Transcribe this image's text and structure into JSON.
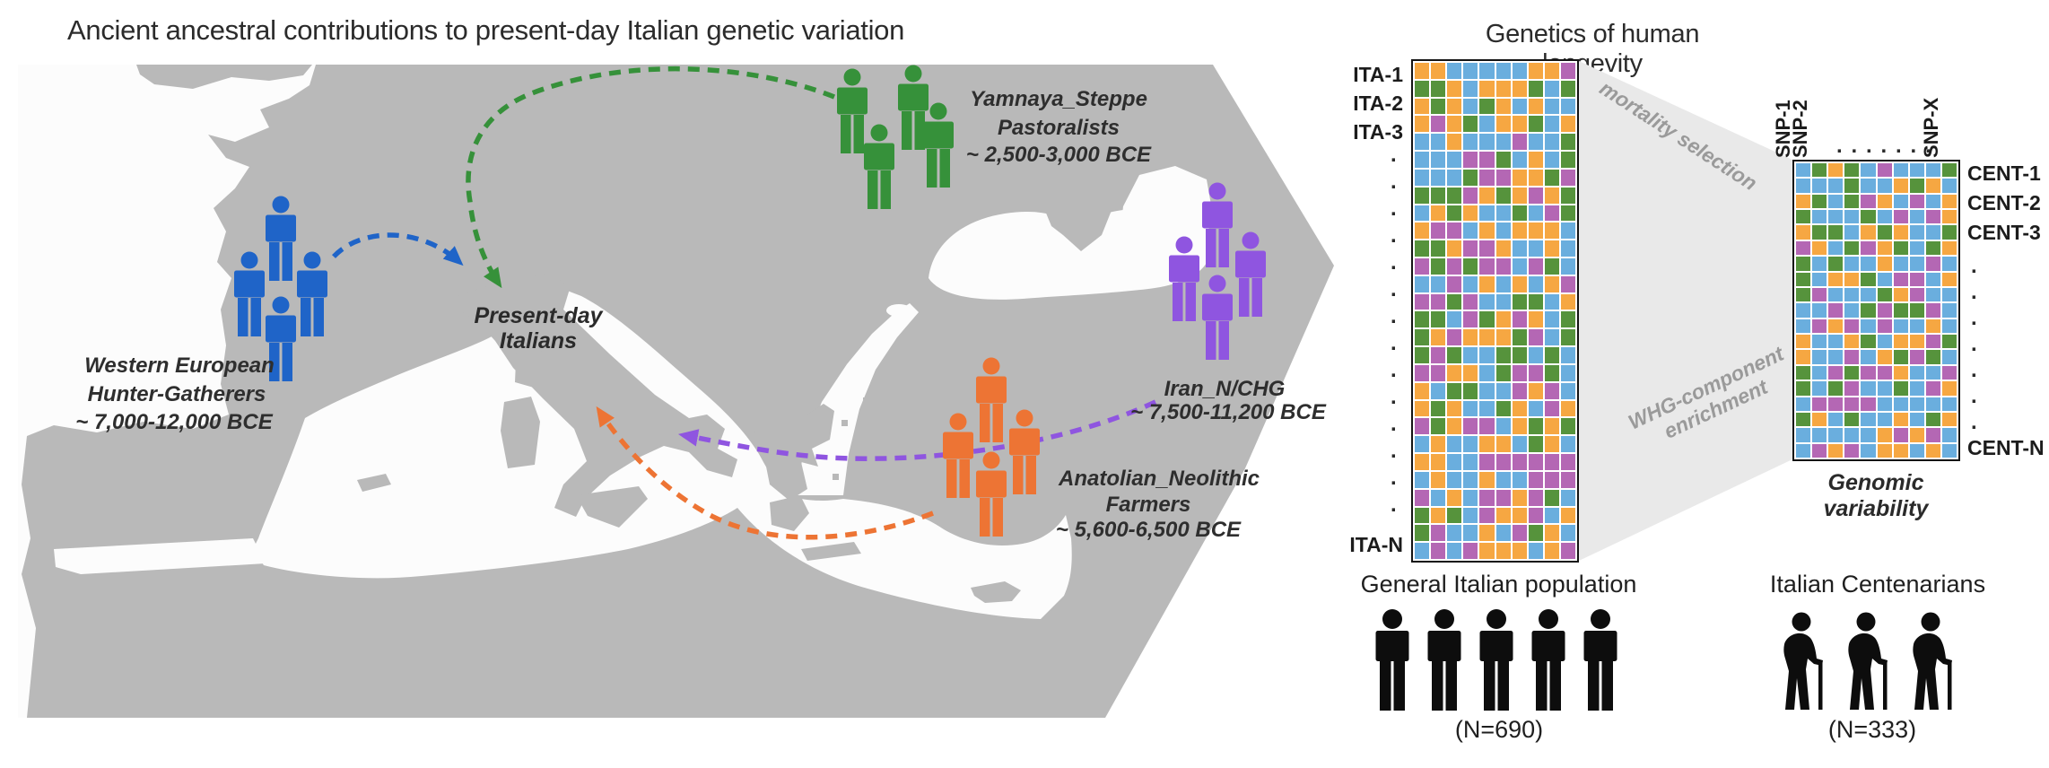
{
  "map_panel": {
    "title": "Ancient ancestral contributions to present-day Italian genetic variation",
    "destination": {
      "line1": "Present-day",
      "line2": "Italians"
    },
    "land_color": "#b9b9b9",
    "sea_color": "#fcfcfc",
    "populations": [
      {
        "id": "whg",
        "name_line1": "Western European",
        "name_line2": "Hunter-Gatherers",
        "date_line": "~ 7,000-12,000 BCE",
        "color": "#1f64c8"
      },
      {
        "id": "yamnaya",
        "name_line1": "Yamnaya_Steppe",
        "name_line2": "Pastoralists",
        "date_line": "~ 2,500-3,000 BCE",
        "color": "#36913a"
      },
      {
        "id": "iran",
        "name_line1": "Iran_N/CHG",
        "name_line2": "",
        "date_line": "~ 7,500-11,200 BCE",
        "color": "#8f55e0"
      },
      {
        "id": "anatolia",
        "name_line1": "Anatolian_Neolithic",
        "name_line2": "Farmers",
        "date_line": "~ 5,600-6,500 BCE",
        "color": "#ed7434"
      }
    ]
  },
  "longevity_panel": {
    "title": "Genetics of human longevity",
    "matrix_palette": [
      "#6aaede",
      "#f6a742",
      "#56933c",
      "#b467b4"
    ],
    "ita_matrix": {
      "rows": 28,
      "cols": 10,
      "weights": [
        0.27,
        0.31,
        0.21,
        0.21
      ],
      "seed": 13,
      "row_labels": [
        "ITA-1",
        "ITA-2",
        "ITA-3"
      ],
      "row_label_last": "ITA-N",
      "dot_count": 14
    },
    "cent_matrix": {
      "rows": 19,
      "cols": 10,
      "weights": [
        0.45,
        0.19,
        0.17,
        0.19
      ],
      "seed": 99,
      "row_labels": [
        "CENT-1",
        "CENT-2",
        "CENT-3"
      ],
      "row_label_last": "CENT-N",
      "dot_count": 7,
      "col_labels": [
        "SNP-1",
        "SNP-2"
      ],
      "col_label_last": "SNP-X",
      "col_dot_count": 7
    },
    "funnel_label_top": "mortality selection",
    "funnel_label_bottom_line1": "WHG-component",
    "funnel_label_bottom_line2": "enrichment",
    "caption": "Genomic variability",
    "groups": [
      {
        "label": "General Italian population",
        "count_label": "(N=690)",
        "icon_count": 5
      },
      {
        "label": "Italian Centenarians",
        "count_label": "(N=333)",
        "icon_count": 3
      }
    ],
    "icon_color": "#0d0d0d"
  }
}
